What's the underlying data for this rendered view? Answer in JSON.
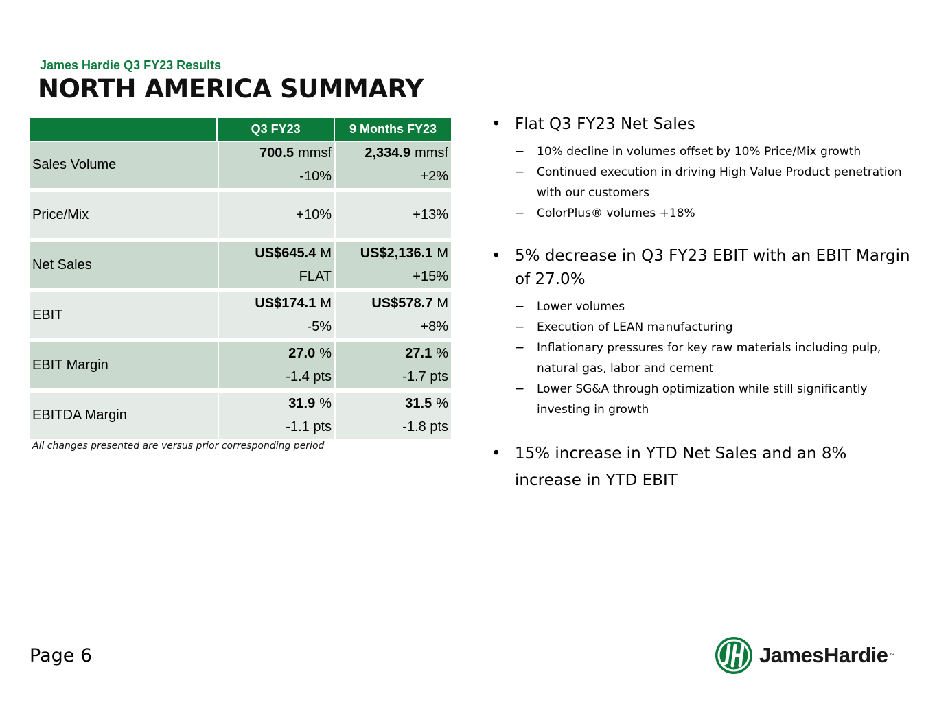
{
  "header": {
    "subtitle": "James Hardie Q3 FY23 Results",
    "title": "NORTH AMERICA SUMMARY"
  },
  "table": {
    "columns": [
      "Q3 FY23",
      "9 Months FY23"
    ],
    "rows": [
      {
        "label": "Sales Volume",
        "q3_value": "700.5",
        "q3_unit": "mmsf",
        "q3_change": "-10%",
        "ytd_value": "2,334.9",
        "ytd_unit": "mmsf",
        "ytd_change": "+2%"
      },
      {
        "label": "Price/Mix",
        "q3_change": "+10%",
        "ytd_change": "+13%"
      },
      {
        "label": "Net Sales",
        "q3_value": "US$645.4",
        "q3_unit": "M",
        "q3_change": "FLAT",
        "ytd_value": "US$2,136.1",
        "ytd_unit": "M",
        "ytd_change": "+15%"
      },
      {
        "label": "EBIT",
        "q3_value": "US$174.1",
        "q3_unit": "M",
        "q3_change": "-5%",
        "ytd_value": "US$578.7",
        "ytd_unit": "M",
        "ytd_change": "+8%"
      },
      {
        "label": "EBIT Margin",
        "q3_value": "27.0",
        "q3_unit": "%",
        "q3_change": "-1.4 pts",
        "ytd_value": "27.1",
        "ytd_unit": "%",
        "ytd_change": "-1.7 pts"
      },
      {
        "label": "EBITDA Margin",
        "q3_value": "31.9",
        "q3_unit": "%",
        "q3_change": "-1.1 pts",
        "ytd_value": "31.5",
        "ytd_unit": "%",
        "ytd_change": "-1.8 pts"
      }
    ],
    "note": "All changes presented are versus prior corresponding period"
  },
  "bullets": [
    {
      "text": "Flat Q3 FY23 Net Sales",
      "subs": [
        "10% decline in volumes offset by 10% Price/Mix growth",
        "Continued execution in driving High Value Product penetration with our customers",
        "ColorPlus® volumes +18%"
      ]
    },
    {
      "text": "5% decrease in Q3 FY23 EBIT with an EBIT Margin of 27.0%",
      "subs": [
        "Lower volumes",
        "Execution of LEAN manufacturing",
        "Inflationary pressures for key raw materials including pulp, natural gas, labor and cement",
        "Lower SG&A through optimization while still significantly investing in growth"
      ]
    },
    {
      "text": "15% increase in YTD Net Sales and an 8% increase in YTD EBIT",
      "subs": []
    }
  ],
  "footer": {
    "page": "Page 6",
    "logo_text": "JamesHardie",
    "logo_tm": "™"
  },
  "colors": {
    "brand_green": "#0b7a3a",
    "row_dark": "#c9d9cd",
    "row_light": "#e4ebe6"
  },
  "symbols": {
    "bullet": "•",
    "dash": "−"
  }
}
